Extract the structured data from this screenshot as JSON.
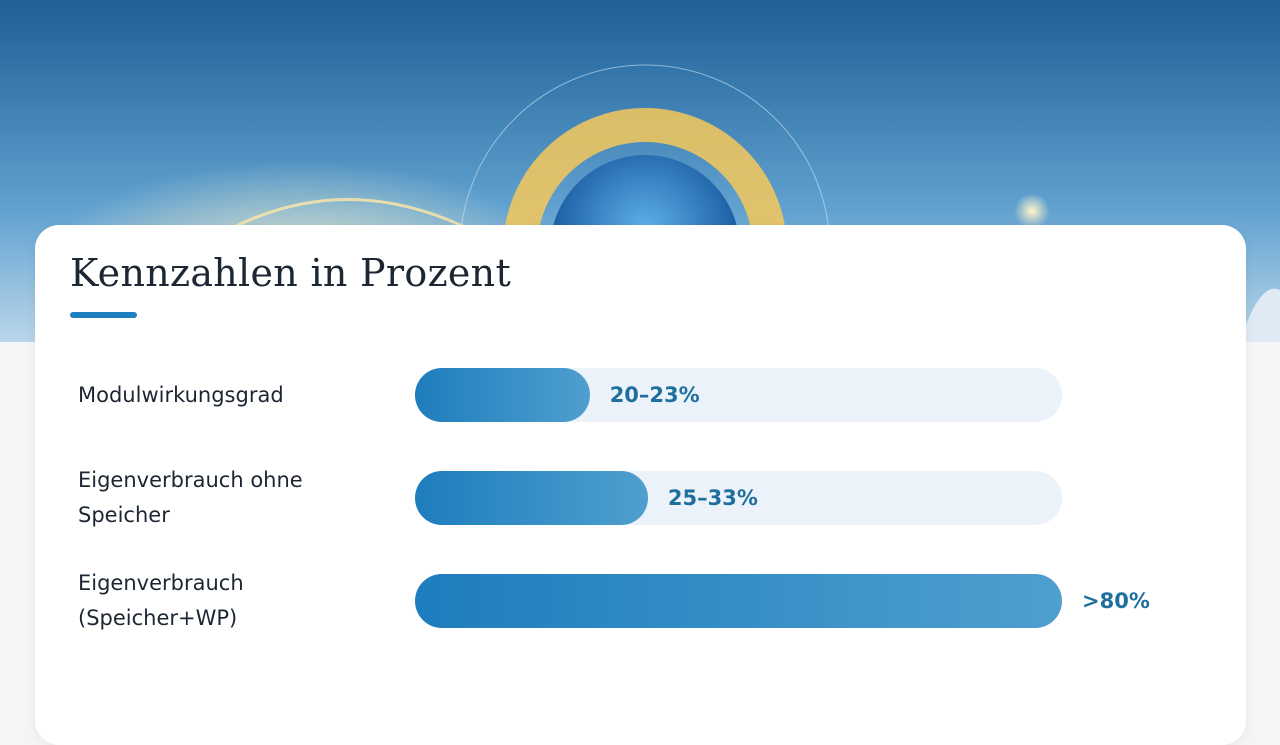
{
  "title": "Kennzahlen in Prozent",
  "xlim": [
    0,
    100
  ],
  "rows": [
    {
      "label": "Modulwirkungsgrad",
      "value_label": "20–23%",
      "fill": 27
    },
    {
      "label": "Eigenverbrauch ohne Speicher",
      "value_label": "25–33%",
      "fill": 36
    },
    {
      "label": "Eigenverbrauch (Speicher+WP)",
      "value_label": ">80%",
      "fill": 100
    }
  ]
}
